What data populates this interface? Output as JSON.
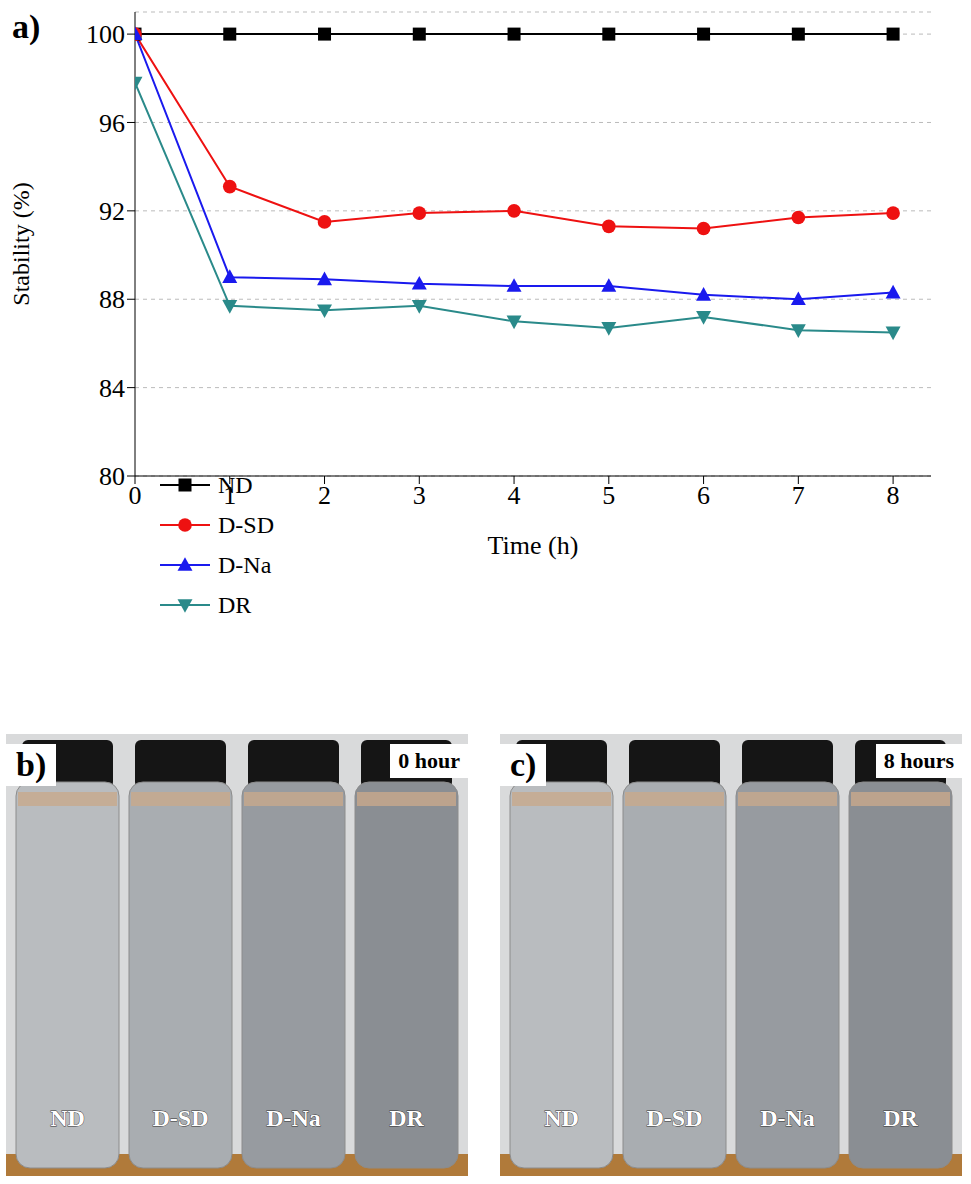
{
  "chart_data": {
    "type": "line",
    "panel": "a)",
    "x_label": "Time (h)",
    "y_label": "Stability (%)",
    "x": [
      0,
      1,
      2,
      3,
      4,
      5,
      6,
      7,
      8
    ],
    "series": [
      {
        "name": "ND",
        "color": "#000000",
        "marker": "square",
        "values": [
          100,
          100,
          100,
          100,
          100,
          100,
          100,
          100,
          100
        ]
      },
      {
        "name": "D-SD",
        "color": "#ee1111",
        "marker": "circle",
        "values": [
          100,
          93.1,
          91.5,
          91.9,
          92.0,
          91.3,
          91.2,
          91.7,
          91.9
        ]
      },
      {
        "name": "D-Na",
        "color": "#1a1aee",
        "marker": "triangle",
        "values": [
          100,
          89.0,
          88.9,
          88.7,
          88.6,
          88.6,
          88.2,
          88.0,
          88.3
        ]
      },
      {
        "name": "DR",
        "color": "#2a8a8a",
        "marker": "triangle-down",
        "values": [
          97.8,
          87.7,
          87.5,
          87.7,
          87.0,
          86.7,
          87.2,
          86.6,
          86.5
        ]
      }
    ],
    "xlim": [
      0,
      8.4
    ],
    "xticks": [
      0,
      1,
      2,
      3,
      4,
      5,
      6,
      7,
      8
    ],
    "ylim": [
      80,
      101
    ],
    "yticks": [
      80,
      84,
      88,
      92,
      96,
      100
    ],
    "grid": true,
    "legend": "left"
  },
  "photos": [
    {
      "panel": "b)",
      "time": "0 hour",
      "samples": [
        "ND",
        "D-SD",
        "D-Na",
        "DR"
      ]
    },
    {
      "panel": "c)",
      "time": "8 hours",
      "samples": [
        "ND",
        "D-SD",
        "D-Na",
        "DR"
      ]
    }
  ]
}
